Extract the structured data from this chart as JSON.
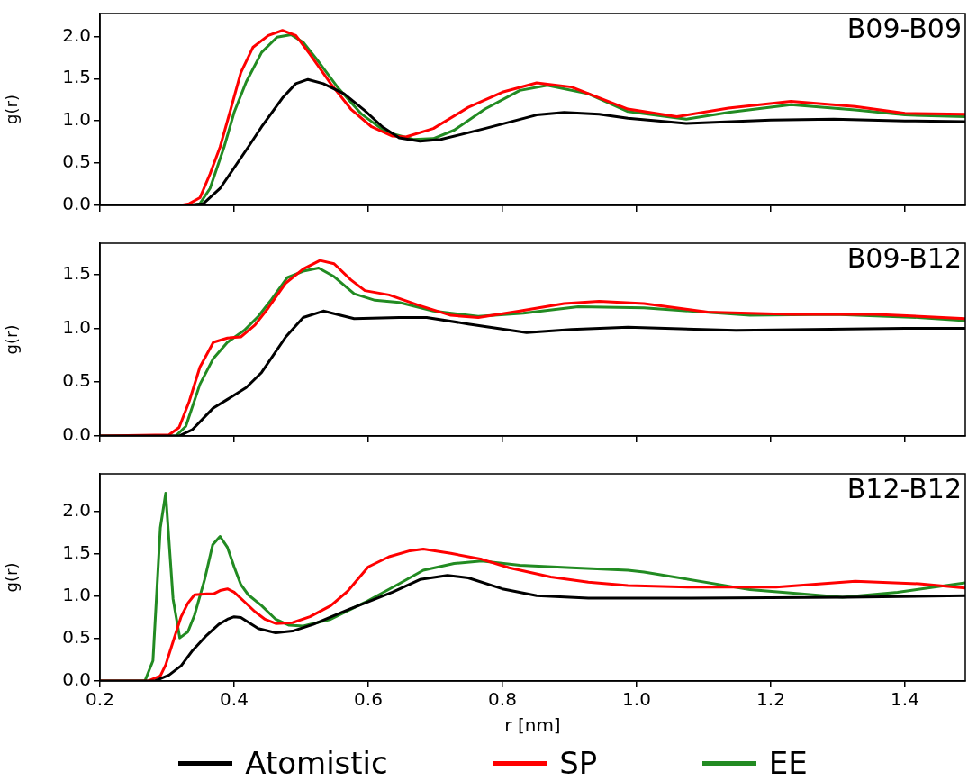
{
  "chart_data": [
    {
      "type": "line",
      "title": "B09-B09",
      "ylabel": "g(r)",
      "xlim": [
        0.2,
        1.49
      ],
      "xticks": [
        {
          "value": 0.2,
          "label": null
        },
        {
          "value": 0.4,
          "label": null
        },
        {
          "value": 0.6,
          "label": null
        },
        {
          "value": 0.8,
          "label": null
        },
        {
          "value": 1.0,
          "label": null
        },
        {
          "value": 1.2,
          "label": null
        },
        {
          "value": 1.4,
          "label": null
        }
      ],
      "ylim": [
        0,
        2.27
      ],
      "yticks": [
        {
          "value": 0,
          "label": "0.0"
        },
        {
          "value": 0.5,
          "label": "0.5"
        },
        {
          "value": 1,
          "label": "1.0"
        },
        {
          "value": 1.5,
          "label": "1.5"
        },
        {
          "value": 2,
          "label": "2.0"
        }
      ],
      "tick_labels": "y",
      "legend": false,
      "series": [
        {
          "color": "#000000",
          "x": [
            0.2,
            0.33,
            0.354,
            0.379,
            0.421,
            0.441,
            0.472,
            0.492,
            0.51,
            0.533,
            0.564,
            0.595,
            0.621,
            0.646,
            0.677,
            0.708,
            0.774,
            0.851,
            0.892,
            0.944,
            0.987,
            1.074,
            1.2,
            1.294,
            1.4,
            1.49
          ],
          "values": [
            0,
            0,
            0.02,
            0.2,
            0.69,
            0.93,
            1.27,
            1.44,
            1.49,
            1.44,
            1.32,
            1.12,
            0.93,
            0.8,
            0.76,
            0.78,
            0.91,
            1.07,
            1.1,
            1.08,
            1.03,
            0.97,
            1.01,
            1.02,
            1.0,
            0.99
          ]
        },
        {
          "color": "#ff0000",
          "x": [
            0.2,
            0.32,
            0.333,
            0.349,
            0.364,
            0.379,
            0.395,
            0.41,
            0.428,
            0.451,
            0.472,
            0.492,
            0.513,
            0.544,
            0.574,
            0.605,
            0.636,
            0.656,
            0.697,
            0.749,
            0.8,
            0.851,
            0.903,
            0.987,
            1.06,
            1.137,
            1.23,
            1.326,
            1.4,
            1.49
          ],
          "values": [
            0,
            0,
            0.02,
            0.09,
            0.37,
            0.69,
            1.14,
            1.57,
            1.87,
            2.01,
            2.07,
            2.01,
            1.79,
            1.44,
            1.14,
            0.93,
            0.82,
            0.81,
            0.91,
            1.16,
            1.34,
            1.45,
            1.4,
            1.14,
            1.05,
            1.15,
            1.23,
            1.17,
            1.09,
            1.08
          ]
        },
        {
          "color": "#228b22",
          "x": [
            0.2,
            0.335,
            0.349,
            0.364,
            0.385,
            0.4,
            0.418,
            0.441,
            0.464,
            0.485,
            0.503,
            0.523,
            0.554,
            0.59,
            0.626,
            0.667,
            0.697,
            0.728,
            0.774,
            0.826,
            0.867,
            0.928,
            0.987,
            1.074,
            1.137,
            1.23,
            1.326,
            1.4,
            1.49
          ],
          "values": [
            0,
            0,
            0.02,
            0.2,
            0.69,
            1.1,
            1.46,
            1.81,
            1.99,
            2.02,
            1.93,
            1.73,
            1.4,
            1.08,
            0.87,
            0.78,
            0.79,
            0.89,
            1.14,
            1.36,
            1.42,
            1.32,
            1.11,
            1.02,
            1.1,
            1.19,
            1.13,
            1.07,
            1.05
          ]
        }
      ]
    },
    {
      "type": "line",
      "title": "B09-B12",
      "ylabel": "g(r)",
      "xlim": [
        0.2,
        1.49
      ],
      "xticks": [
        {
          "value": 0.2,
          "label": null
        },
        {
          "value": 0.4,
          "label": null
        },
        {
          "value": 0.6,
          "label": null
        },
        {
          "value": 0.8,
          "label": null
        },
        {
          "value": 1.0,
          "label": null
        },
        {
          "value": 1.2,
          "label": null
        },
        {
          "value": 1.4,
          "label": null
        }
      ],
      "ylim": [
        0,
        1.79
      ],
      "yticks": [
        {
          "value": 0,
          "label": "0.0"
        },
        {
          "value": 0.5,
          "label": "0.5"
        },
        {
          "value": 1,
          "label": "1.0"
        },
        {
          "value": 1.5,
          "label": "1.5"
        }
      ],
      "tick_labels": "y",
      "legend": false,
      "series": [
        {
          "color": "#000000",
          "x": [
            0.2,
            0.318,
            0.338,
            0.369,
            0.39,
            0.418,
            0.441,
            0.477,
            0.503,
            0.533,
            0.579,
            0.646,
            0.687,
            0.749,
            0.836,
            0.903,
            0.987,
            1.148,
            1.4,
            1.49
          ],
          "values": [
            0,
            0,
            0.06,
            0.26,
            0.34,
            0.45,
            0.59,
            0.92,
            1.1,
            1.16,
            1.09,
            1.1,
            1.1,
            1.04,
            0.96,
            0.99,
            1.01,
            0.98,
            1.0,
            1.0
          ]
        },
        {
          "color": "#ff0000",
          "x": [
            0.2,
            0.303,
            0.318,
            0.333,
            0.349,
            0.369,
            0.39,
            0.41,
            0.431,
            0.451,
            0.477,
            0.503,
            0.528,
            0.549,
            0.574,
            0.595,
            0.631,
            0.677,
            0.723,
            0.764,
            0.826,
            0.892,
            0.944,
            1.011,
            1.106,
            1.23,
            1.357,
            1.49
          ],
          "values": [
            0,
            0.01,
            0.08,
            0.32,
            0.64,
            0.87,
            0.91,
            0.92,
            1.03,
            1.19,
            1.42,
            1.55,
            1.63,
            1.6,
            1.45,
            1.35,
            1.31,
            1.21,
            1.12,
            1.1,
            1.16,
            1.23,
            1.25,
            1.23,
            1.15,
            1.13,
            1.13,
            1.09
          ]
        },
        {
          "color": "#228b22",
          "x": [
            0.2,
            0.313,
            0.328,
            0.349,
            0.369,
            0.39,
            0.415,
            0.436,
            0.456,
            0.479,
            0.503,
            0.526,
            0.549,
            0.579,
            0.61,
            0.646,
            0.697,
            0.764,
            0.831,
            0.913,
            1.011,
            1.169,
            1.295,
            1.42,
            1.49
          ],
          "values": [
            0,
            0,
            0.09,
            0.48,
            0.72,
            0.87,
            0.98,
            1.11,
            1.27,
            1.47,
            1.53,
            1.56,
            1.48,
            1.32,
            1.26,
            1.24,
            1.16,
            1.11,
            1.14,
            1.2,
            1.19,
            1.12,
            1.13,
            1.1,
            1.07
          ]
        }
      ]
    },
    {
      "type": "line",
      "title": "B12-B12",
      "xlabel": "r [nm]",
      "ylabel": "g(r)",
      "xlim": [
        0.2,
        1.49
      ],
      "xticks": [
        0.2,
        0.4,
        0.6,
        0.8,
        {
          "value": 1.0,
          "label": "1.0"
        },
        1.2,
        1.4
      ],
      "ylim": [
        0,
        2.45
      ],
      "yticks": [
        {
          "value": 0,
          "label": "0.0"
        },
        {
          "value": 0.5,
          "label": "0.5"
        },
        {
          "value": 1,
          "label": "1.0"
        },
        {
          "value": 1.5,
          "label": "1.5"
        },
        {
          "value": 2,
          "label": "2.0"
        }
      ],
      "legend": "bottom",
      "series": [
        {
          "name": "Atomistic",
          "color": "#000000",
          "x": [
            0.2,
            0.282,
            0.303,
            0.321,
            0.338,
            0.359,
            0.377,
            0.39,
            0.4,
            0.41,
            0.436,
            0.462,
            0.487,
            0.518,
            0.569,
            0.636,
            0.677,
            0.718,
            0.749,
            0.8,
            0.851,
            0.928,
            0.987,
            1.082,
            1.315,
            1.49
          ],
          "values": [
            0,
            0,
            0.07,
            0.18,
            0.36,
            0.54,
            0.67,
            0.73,
            0.76,
            0.75,
            0.62,
            0.57,
            0.59,
            0.67,
            0.84,
            1.05,
            1.2,
            1.25,
            1.22,
            1.09,
            1.01,
            0.98,
            0.98,
            0.98,
            0.99,
            1.01
          ]
        },
        {
          "name": "SP",
          "color": "#ff0000",
          "x": [
            0.2,
            0.272,
            0.29,
            0.298,
            0.31,
            0.321,
            0.331,
            0.341,
            0.359,
            0.369,
            0.379,
            0.39,
            0.4,
            0.415,
            0.431,
            0.446,
            0.462,
            0.487,
            0.513,
            0.544,
            0.569,
            0.6,
            0.631,
            0.662,
            0.682,
            0.723,
            0.769,
            0.81,
            0.872,
            0.928,
            0.987,
            1.082,
            1.208,
            1.326,
            1.421,
            1.49
          ],
          "values": [
            0,
            0,
            0.06,
            0.19,
            0.49,
            0.76,
            0.92,
            1.02,
            1.03,
            1.03,
            1.07,
            1.09,
            1.05,
            0.94,
            0.82,
            0.73,
            0.68,
            0.69,
            0.76,
            0.89,
            1.06,
            1.35,
            1.47,
            1.54,
            1.56,
            1.51,
            1.44,
            1.34,
            1.23,
            1.17,
            1.13,
            1.11,
            1.11,
            1.18,
            1.15,
            1.1
          ]
        },
        {
          "name": "EE",
          "color": "#228b22",
          "x": [
            0.2,
            0.267,
            0.279,
            0.29,
            0.298,
            0.309,
            0.319,
            0.331,
            0.341,
            0.356,
            0.368,
            0.379,
            0.39,
            0.4,
            0.41,
            0.421,
            0.441,
            0.462,
            0.482,
            0.503,
            0.544,
            0.595,
            0.646,
            0.682,
            0.728,
            0.769,
            0.826,
            0.903,
            0.987,
            1.011,
            1.169,
            1.307,
            1.389,
            1.49
          ],
          "values": [
            0,
            0,
            0.24,
            1.81,
            2.22,
            0.97,
            0.51,
            0.58,
            0.78,
            1.2,
            1.61,
            1.71,
            1.58,
            1.35,
            1.14,
            1.02,
            0.89,
            0.73,
            0.66,
            0.65,
            0.73,
            0.93,
            1.15,
            1.31,
            1.39,
            1.42,
            1.37,
            1.34,
            1.31,
            1.29,
            1.08,
            0.99,
            1.05,
            1.16
          ]
        }
      ]
    }
  ]
}
